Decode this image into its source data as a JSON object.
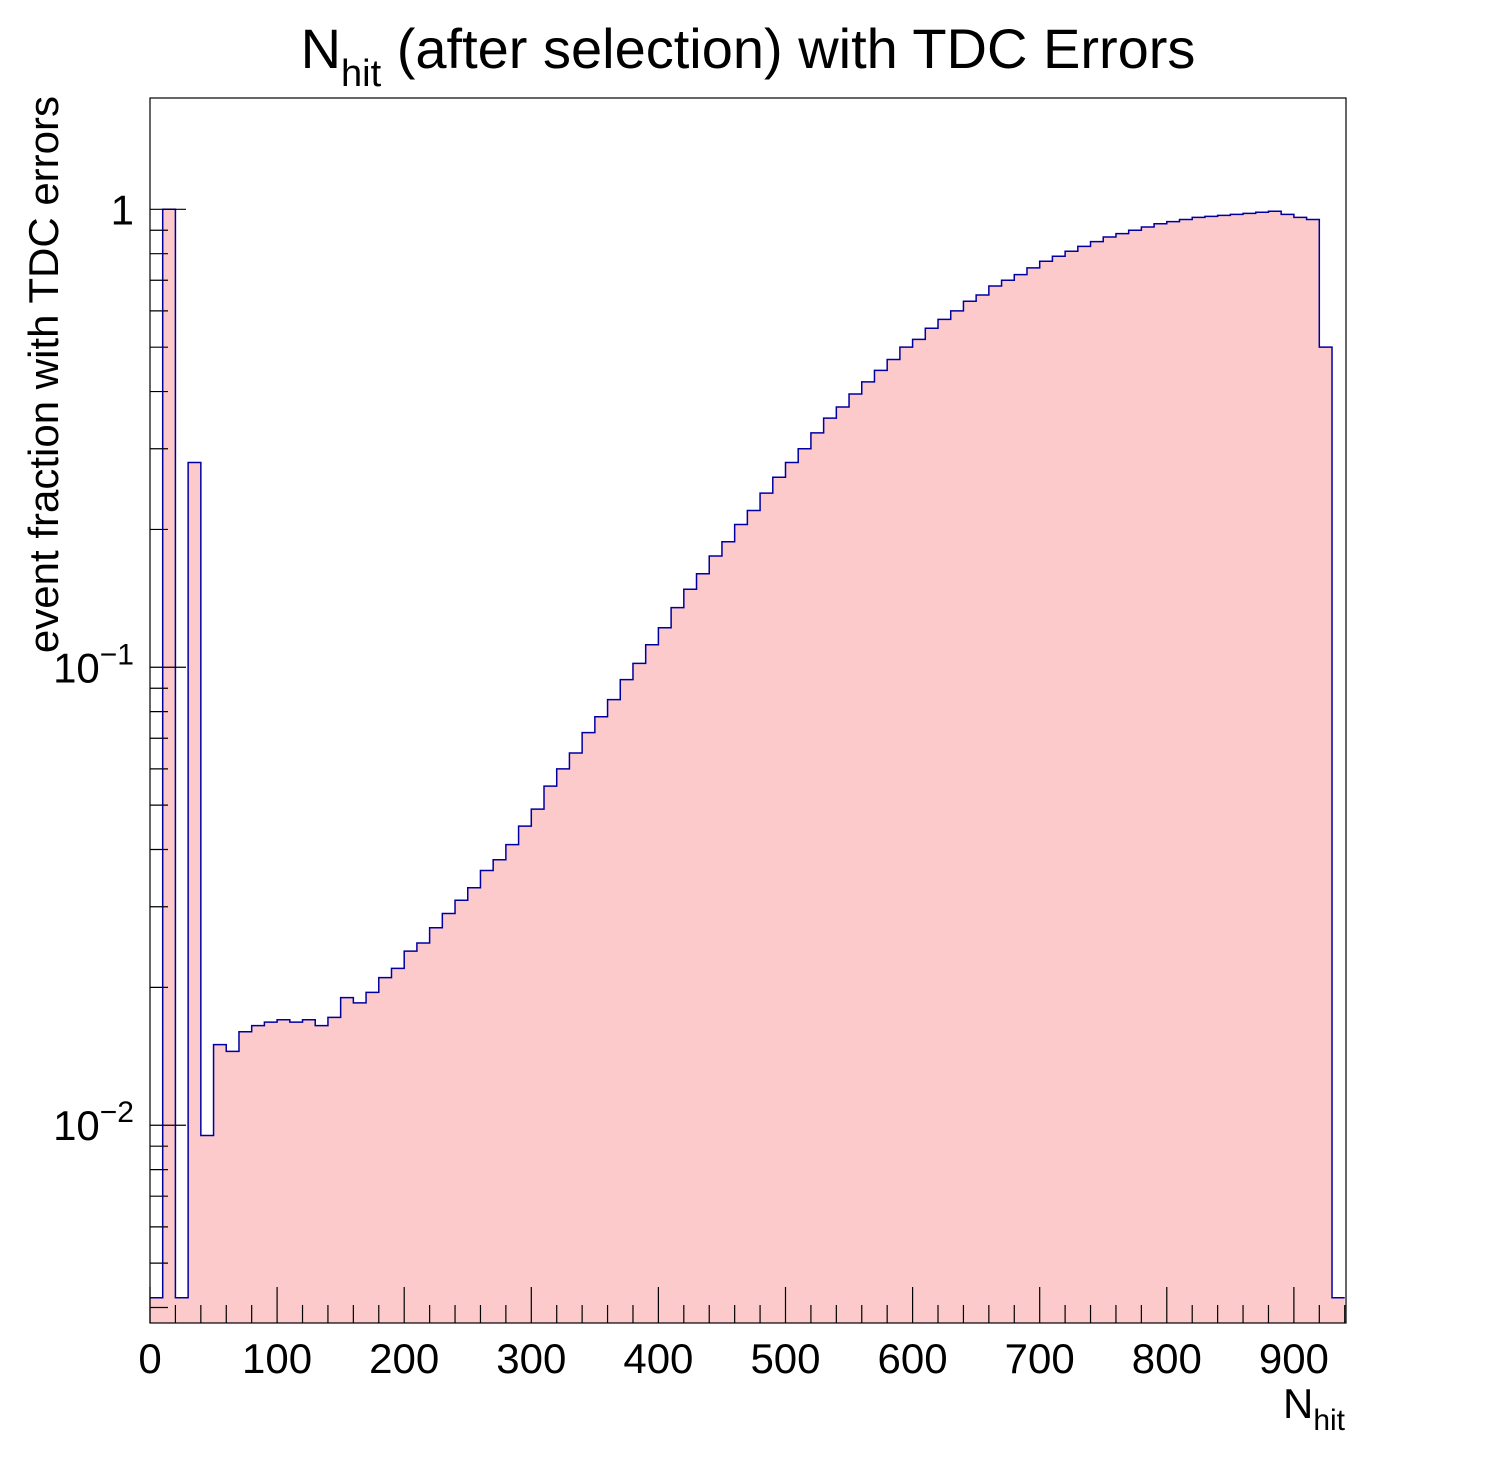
{
  "chart_data": {
    "type": "histogram",
    "title": {
      "main": "N",
      "sub": "hit",
      "rest": " (after selection) with TDC Errors"
    },
    "xlabel": {
      "main": "N",
      "sub": "hit"
    },
    "ylabel": "event fraction with TDC errors",
    "x_range": [
      0,
      941
    ],
    "y_range": [
      0.0037,
      1.75
    ],
    "y_scale": "log",
    "x_ticks": [
      0,
      100,
      200,
      300,
      400,
      500,
      600,
      700,
      800,
      900
    ],
    "y_ticks": [
      {
        "value": 0.01,
        "base": "10",
        "exp": "−2"
      },
      {
        "value": 0.1,
        "base": "10",
        "exp": "−1"
      },
      {
        "value": 1,
        "label": "1"
      }
    ],
    "fill_color": "#fccaca",
    "line_color": "#0000a0",
    "series": [
      {
        "x_step": 10,
        "x_start": 0,
        "values": [
          0.0042,
          1.0,
          0.0042,
          0.28,
          0.0095,
          0.015,
          0.0145,
          0.016,
          0.0165,
          0.0168,
          0.017,
          0.0168,
          0.017,
          0.0165,
          0.0172,
          0.019,
          0.0185,
          0.0195,
          0.021,
          0.022,
          0.024,
          0.025,
          0.027,
          0.029,
          0.031,
          0.033,
          0.036,
          0.038,
          0.041,
          0.045,
          0.049,
          0.055,
          0.06,
          0.065,
          0.072,
          0.078,
          0.085,
          0.094,
          0.102,
          0.112,
          0.122,
          0.135,
          0.148,
          0.16,
          0.175,
          0.188,
          0.205,
          0.22,
          0.24,
          0.26,
          0.28,
          0.3,
          0.325,
          0.35,
          0.37,
          0.395,
          0.42,
          0.445,
          0.47,
          0.5,
          0.52,
          0.55,
          0.575,
          0.6,
          0.63,
          0.65,
          0.68,
          0.7,
          0.72,
          0.745,
          0.77,
          0.79,
          0.81,
          0.83,
          0.85,
          0.87,
          0.885,
          0.9,
          0.915,
          0.93,
          0.94,
          0.95,
          0.96,
          0.965,
          0.97,
          0.975,
          0.98,
          0.985,
          0.99,
          0.975,
          0.96,
          0.95,
          0.5,
          0.0042
        ]
      }
    ]
  }
}
